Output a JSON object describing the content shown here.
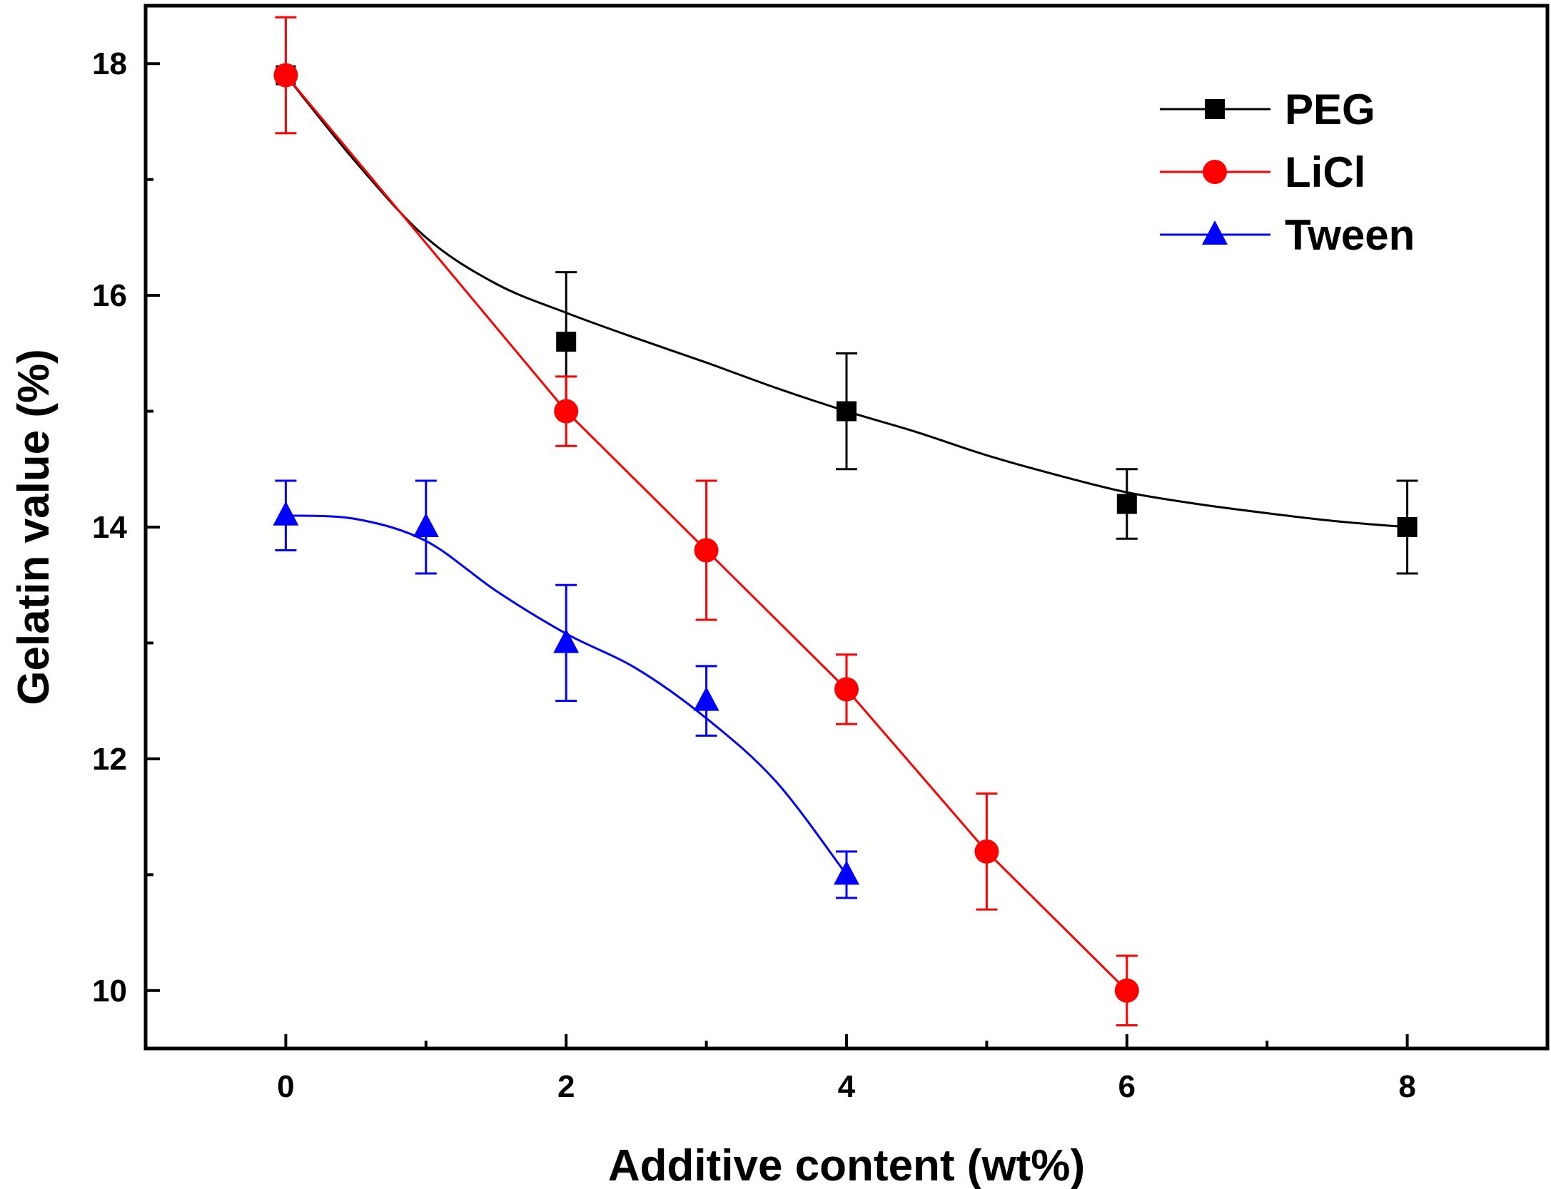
{
  "chart_data": {
    "type": "scatter",
    "xlabel": "Additive content (wt%)",
    "ylabel": "Gelatin value (%)",
    "xlim": [
      -1,
      9
    ],
    "ylim": [
      9.5,
      18.5
    ],
    "xticks": [
      0,
      2,
      4,
      6,
      8
    ],
    "yticks": [
      10,
      12,
      14,
      16,
      18
    ],
    "xminor": [
      1,
      3,
      5,
      7
    ],
    "yminor": [
      11,
      13,
      15,
      17
    ],
    "legend_position": "top-right",
    "series": [
      {
        "name": "PEG",
        "color": "#000000",
        "marker": "square",
        "x": [
          0,
          2,
          4,
          6,
          8
        ],
        "y": [
          17.9,
          15.6,
          15.0,
          14.2,
          14.0
        ],
        "err": [
          0.0,
          0.6,
          0.5,
          0.3,
          0.4
        ],
        "fit": [
          [
            0,
            17.9
          ],
          [
            0.5,
            17.15
          ],
          [
            1,
            16.5
          ],
          [
            1.5,
            16.1
          ],
          [
            2,
            15.85
          ],
          [
            2.5,
            15.63
          ],
          [
            3,
            15.42
          ],
          [
            3.5,
            15.2
          ],
          [
            4,
            15.0
          ],
          [
            4.5,
            14.82
          ],
          [
            5,
            14.62
          ],
          [
            5.5,
            14.45
          ],
          [
            6,
            14.3
          ],
          [
            6.5,
            14.2
          ],
          [
            7,
            14.12
          ],
          [
            7.5,
            14.05
          ],
          [
            8,
            14.0
          ]
        ]
      },
      {
        "name": "LiCl",
        "color": "#ff0000",
        "marker": "circle",
        "x": [
          0,
          2,
          3,
          4,
          5,
          6
        ],
        "y": [
          17.9,
          15.0,
          13.8,
          12.6,
          11.2,
          10.0
        ],
        "err": [
          0.5,
          0.3,
          0.6,
          0.3,
          0.5,
          0.3
        ],
        "fit": [
          [
            0,
            17.9
          ],
          [
            2,
            15.0
          ],
          [
            3,
            13.8
          ],
          [
            4,
            12.6
          ],
          [
            5,
            11.2
          ],
          [
            6,
            10.0
          ]
        ]
      },
      {
        "name": "Tween",
        "color": "#0000ff",
        "marker": "triangle",
        "x": [
          0,
          1,
          2,
          3,
          4
        ],
        "y": [
          14.1,
          14.0,
          13.0,
          12.5,
          11.0
        ],
        "err": [
          0.3,
          0.4,
          0.5,
          0.3,
          0.2
        ],
        "fit": [
          [
            0,
            14.1
          ],
          [
            0.5,
            14.07
          ],
          [
            1,
            13.88
          ],
          [
            1.5,
            13.45
          ],
          [
            2,
            13.08
          ],
          [
            2.5,
            12.78
          ],
          [
            3,
            12.35
          ],
          [
            3.5,
            11.8
          ],
          [
            4,
            11.0
          ]
        ]
      }
    ]
  }
}
